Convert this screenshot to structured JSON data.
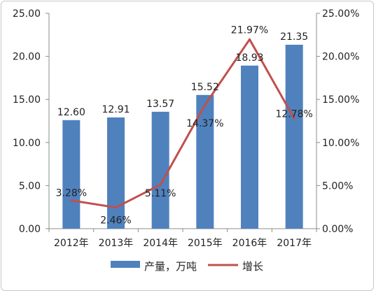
{
  "chart_data": {
    "type": "bar",
    "title": "",
    "categories": [
      "2012年",
      "2013年",
      "2014年",
      "2015年",
      "2016年",
      "2017年"
    ],
    "series": [
      {
        "name": "产量，万吨",
        "kind": "bar",
        "axis": "left",
        "color": "#4f81bd",
        "values": [
          12.6,
          12.91,
          13.57,
          15.52,
          18.93,
          21.35
        ],
        "labels": [
          "12.60",
          "12.91",
          "13.57",
          "15.52",
          "18.93",
          "21.35"
        ]
      },
      {
        "name": "增长",
        "kind": "line",
        "axis": "right",
        "color": "#c0504d",
        "values": [
          3.28,
          2.46,
          5.11,
          14.37,
          21.97,
          12.78
        ],
        "labels": [
          "3.28%",
          "2.46%",
          "5.11%",
          "14.37%",
          "21.97%",
          "12.78%"
        ]
      }
    ],
    "y_left": {
      "range": [
        0,
        25
      ],
      "ticks": [
        0,
        5,
        10,
        15,
        20,
        25
      ],
      "tick_labels": [
        "0.00",
        "5.00",
        "10.00",
        "15.00",
        "20.00",
        "25.00"
      ]
    },
    "y_right": {
      "range": [
        0,
        25
      ],
      "ticks": [
        0,
        5,
        10,
        15,
        20,
        25
      ],
      "tick_labels": [
        "0.00%",
        "5.00%",
        "10.00%",
        "15.00%",
        "20.00%",
        "25.00%"
      ]
    },
    "grid": false,
    "legend_position": "bottom"
  }
}
